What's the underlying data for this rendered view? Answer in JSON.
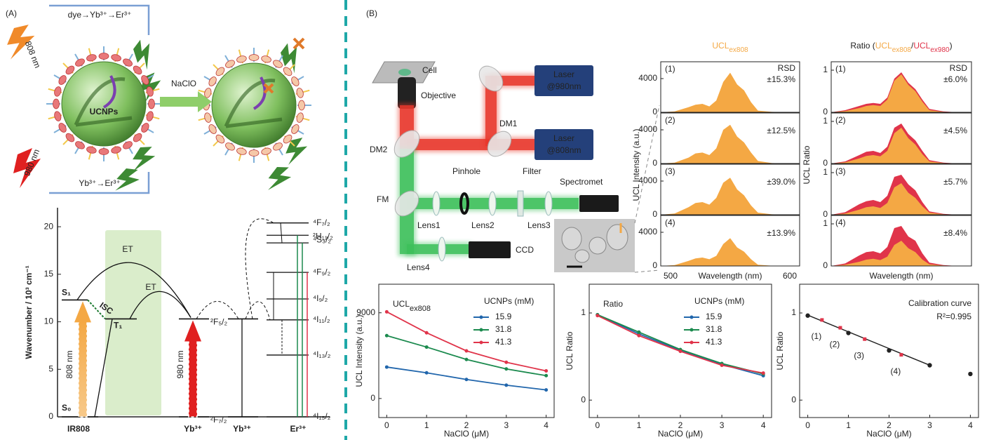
{
  "panel_labels": [
    "(A)",
    "(B)"
  ],
  "scheme": {
    "top_label": "dye→Yb³⁺→Er³⁺",
    "bottom_label": "Yb³⁺→Er³⁺",
    "laser_808": "808 nm",
    "laser_980": "980 nm",
    "core": "UCNPs",
    "reagent": "NaClO"
  },
  "energy_diagram": {
    "y_label": "Wavenumber / 10³ cm⁻¹",
    "ylim": [
      0,
      22
    ],
    "yticks": [
      0,
      5,
      10,
      15,
      20
    ],
    "species": [
      "IR808",
      "Yb³⁺",
      "Yb³⁺",
      "Er³⁺"
    ],
    "dye_levels": [
      {
        "label": "S₀",
        "value": 0
      },
      {
        "label": "S₁",
        "value": 12.3
      },
      {
        "label": "T₁",
        "value": 10.3
      }
    ],
    "yb_levels": [
      {
        "label": "²F₇/₂",
        "value": 0
      },
      {
        "label": "²F₅/₂",
        "value": 10.3
      }
    ],
    "er_levels": [
      {
        "label": "⁴I₁₅/₂",
        "value": 0
      },
      {
        "label": "⁴I₁₃/₂",
        "value": 6.5
      },
      {
        "label": "⁴I₁₁/₂",
        "value": 10.2
      },
      {
        "label": "⁴I₉/₂",
        "value": 12.4
      },
      {
        "label": "⁴F₉/₂",
        "value": 15.2
      },
      {
        "label": "⁴S₃/₂",
        "value": 18.3
      },
      {
        "label": "²H₁₁/₂",
        "value": 19.1
      },
      {
        "label": "⁴F₇/₂",
        "value": 20.4
      }
    ],
    "transitions": {
      "excite_808": "808 nm",
      "excite_980": "980 nm",
      "isc": "ISC",
      "et_dye": "ET",
      "et_triplet": "ET"
    }
  },
  "setup": {
    "cell": "Cell",
    "objective": "Objective",
    "laser_980": [
      "Laser",
      "@980nm"
    ],
    "laser_808": [
      "Laser",
      "@808nm"
    ],
    "dm1": "DM1",
    "dm2": "DM2",
    "fm": "FM",
    "pinhole": "Pinhole",
    "filter": "Filter",
    "spectrometer": "Spectromet",
    "lens1": "Lens1",
    "lens2": "Lens2",
    "lens3": "Lens3",
    "lens4": "Lens4",
    "ccd": "CCD"
  },
  "spectra_columns": [
    {
      "title": [
        {
          "text": "UCL",
          "color": "#f4a844"
        },
        {
          "text": "ex808",
          "color": "#f4a844",
          "sub": true
        }
      ],
      "y_label": "UCL Intensity (a.u.)",
      "x_label": "Wavelength (nm)",
      "header": "RSD"
    },
    {
      "title": [
        {
          "text": "Ratio (",
          "color": "#222"
        },
        {
          "text": "UCL",
          "color": "#f4a844"
        },
        {
          "text": "ex808",
          "color": "#f4a844",
          "sub": true
        },
        {
          "text": "/",
          "color": "#222"
        },
        {
          "text": "UCL",
          "color": "#e0344a"
        },
        {
          "text": "ex980",
          "color": "#e0344a",
          "sub": true
        },
        {
          "text": ")",
          "color": "#222"
        }
      ],
      "y_label": "UCL Ratio",
      "x_label": "Wavelength (nm)",
      "header": "RSD"
    }
  ],
  "chart_data": [
    {
      "type": "area",
      "label": "(1)",
      "annotation": "±15.3%",
      "x": [
        500,
        510,
        520,
        525,
        530,
        535,
        540,
        545,
        550,
        555,
        560,
        565,
        570,
        580,
        590,
        600
      ],
      "xlim": [
        500,
        600
      ],
      "ylim": [
        0,
        6000
      ],
      "yticks": [
        0,
        4000
      ],
      "series": [
        {
          "color": "#f4a844",
          "values": [
            0,
            100,
            600,
            900,
            1000,
            700,
            1400,
            3600,
            4700,
            3300,
            2600,
            1200,
            200,
            50,
            0,
            0
          ]
        }
      ]
    },
    {
      "type": "area",
      "label": "(2)",
      "annotation": "±12.5%",
      "x": [
        500,
        510,
        520,
        525,
        530,
        535,
        540,
        545,
        550,
        555,
        560,
        565,
        570,
        580,
        590,
        600
      ],
      "xlim": [
        500,
        600
      ],
      "ylim": [
        0,
        6000
      ],
      "yticks": [
        0,
        4000
      ],
      "series": [
        {
          "color": "#f4a844",
          "values": [
            0,
            100,
            700,
            1200,
            1300,
            1000,
            1800,
            4000,
            4600,
            3200,
            2500,
            1300,
            300,
            50,
            0,
            0
          ]
        }
      ]
    },
    {
      "type": "area",
      "label": "(3)",
      "annotation": "±39.0%",
      "x": [
        500,
        510,
        520,
        525,
        530,
        535,
        540,
        545,
        550,
        555,
        560,
        565,
        570,
        580,
        590,
        600
      ],
      "xlim": [
        500,
        600
      ],
      "ylim": [
        0,
        6000
      ],
      "yticks": [
        0,
        4000
      ],
      "series": [
        {
          "color": "#f4a844",
          "values": [
            0,
            150,
            900,
            1400,
            1500,
            1200,
            2000,
            3800,
            4400,
            3000,
            2300,
            1100,
            250,
            50,
            0,
            0
          ]
        }
      ]
    },
    {
      "type": "area",
      "label": "(4)",
      "annotation": "±13.9%",
      "x": [
        500,
        510,
        520,
        525,
        530,
        535,
        540,
        545,
        550,
        555,
        560,
        565,
        570,
        580,
        590,
        600
      ],
      "xlim": [
        500,
        600
      ],
      "ylim": [
        0,
        6000
      ],
      "yticks": [
        0,
        4000
      ],
      "xticks": [
        500,
        600
      ],
      "series": [
        {
          "color": "#f4a844",
          "values": [
            0,
            100,
            600,
            900,
            1000,
            800,
            1200,
            2600,
            3300,
            2200,
            1700,
            800,
            150,
            30,
            0,
            0
          ]
        }
      ]
    },
    {
      "type": "area",
      "label": "(1)",
      "annotation": "±6.0%",
      "x": [
        500,
        510,
        520,
        525,
        530,
        535,
        540,
        545,
        550,
        555,
        560,
        565,
        570,
        580,
        590,
        600
      ],
      "xlim": [
        500,
        600
      ],
      "ylim": [
        0,
        1.2
      ],
      "yticks": [
        0,
        1
      ],
      "series": [
        {
          "color": "#e0344a",
          "values": [
            0,
            0.05,
            0.15,
            0.2,
            0.22,
            0.2,
            0.35,
            0.8,
            0.95,
            0.7,
            0.55,
            0.3,
            0.08,
            0.02,
            0,
            0
          ]
        },
        {
          "color": "#f4a844",
          "values": [
            0,
            0.03,
            0.1,
            0.15,
            0.17,
            0.15,
            0.3,
            0.75,
            0.9,
            0.65,
            0.5,
            0.25,
            0.05,
            0.01,
            0,
            0
          ]
        }
      ]
    },
    {
      "type": "area",
      "label": "(2)",
      "annotation": "±4.5%",
      "x": [
        500,
        510,
        520,
        525,
        530,
        535,
        540,
        545,
        550,
        555,
        560,
        565,
        570,
        580,
        590,
        600
      ],
      "xlim": [
        500,
        600
      ],
      "ylim": [
        0,
        1.2
      ],
      "yticks": [
        0,
        1
      ],
      "series": [
        {
          "color": "#e0344a",
          "values": [
            0,
            0.05,
            0.2,
            0.28,
            0.3,
            0.25,
            0.4,
            0.85,
            0.95,
            0.7,
            0.55,
            0.3,
            0.08,
            0.02,
            0,
            0
          ]
        },
        {
          "color": "#f4a844",
          "values": [
            0,
            0.03,
            0.12,
            0.18,
            0.2,
            0.17,
            0.3,
            0.72,
            0.85,
            0.6,
            0.45,
            0.22,
            0.05,
            0.01,
            0,
            0
          ]
        }
      ]
    },
    {
      "type": "area",
      "label": "(3)",
      "annotation": "±5.7%",
      "x": [
        500,
        510,
        520,
        525,
        530,
        535,
        540,
        545,
        550,
        555,
        560,
        565,
        570,
        580,
        590,
        600
      ],
      "xlim": [
        500,
        600
      ],
      "ylim": [
        0,
        1.2
      ],
      "yticks": [
        0,
        1
      ],
      "series": [
        {
          "color": "#e0344a",
          "values": [
            0,
            0.06,
            0.25,
            0.32,
            0.35,
            0.3,
            0.45,
            0.9,
            0.95,
            0.72,
            0.58,
            0.3,
            0.08,
            0.02,
            0,
            0
          ]
        },
        {
          "color": "#f4a844",
          "values": [
            0,
            0.03,
            0.12,
            0.18,
            0.2,
            0.16,
            0.28,
            0.65,
            0.75,
            0.52,
            0.4,
            0.2,
            0.05,
            0.01,
            0,
            0
          ]
        }
      ]
    },
    {
      "type": "area",
      "label": "(4)",
      "annotation": "±8.4%",
      "x": [
        500,
        510,
        520,
        525,
        530,
        535,
        540,
        545,
        550,
        555,
        560,
        565,
        570,
        580,
        590,
        600
      ],
      "xlim": [
        500,
        600
      ],
      "ylim": [
        0,
        1.2
      ],
      "yticks": [
        0,
        1
      ],
      "series": [
        {
          "color": "#e0344a",
          "values": [
            0,
            0.06,
            0.25,
            0.33,
            0.35,
            0.3,
            0.45,
            0.9,
            0.95,
            0.7,
            0.6,
            0.3,
            0.08,
            0.02,
            0,
            0
          ]
        },
        {
          "color": "#f4a844",
          "values": [
            0,
            0.03,
            0.1,
            0.15,
            0.17,
            0.14,
            0.22,
            0.5,
            0.6,
            0.42,
            0.33,
            0.15,
            0.04,
            0.01,
            0,
            0
          ]
        }
      ]
    },
    {
      "type": "line",
      "title": {
        "text": "UCL",
        "sub": "ex808",
        "color": "#f4a844"
      },
      "x_label": "NaClO  (μM)",
      "y_label": "UCL Intensity (a.u.)",
      "legend_title": "UCNPs (mM)",
      "x": [
        0,
        1,
        2,
        3,
        4
      ],
      "xlim": [
        -0.2,
        4.2
      ],
      "xticks": [
        0,
        1,
        2,
        3,
        4
      ],
      "ylim": [
        -2000,
        12000
      ],
      "yticks": [
        0,
        9000
      ],
      "series": [
        {
          "name": "15.9",
          "color": "#2166ac",
          "values": [
            3300,
            2700,
            2000,
            1400,
            900
          ],
          "errors": [
            150,
            150,
            100,
            150,
            100
          ]
        },
        {
          "name": "31.8",
          "color": "#1b8a4e",
          "values": [
            6600,
            5400,
            4100,
            3100,
            2400
          ],
          "errors": [
            150,
            300,
            150,
            200,
            150
          ]
        },
        {
          "name": "41.3",
          "color": "#e0344a",
          "values": [
            9100,
            6900,
            5000,
            3800,
            2900
          ],
          "errors": [
            100,
            200,
            150,
            150,
            150
          ]
        }
      ]
    },
    {
      "type": "line",
      "title": {
        "text": "Ratio",
        "color": "#222"
      },
      "x_label": "NaClO  (μM)",
      "y_label": "UCL Ratio",
      "legend_title": "UCNPs (mM)",
      "x": [
        0,
        1,
        2,
        3,
        4
      ],
      "xlim": [
        -0.2,
        4.2
      ],
      "xticks": [
        0,
        1,
        2,
        3,
        4
      ],
      "ylim": [
        -0.2,
        1.33
      ],
      "yticks": [
        0,
        1
      ],
      "series": [
        {
          "name": "15.9",
          "color": "#2166ac",
          "values": [
            0.98,
            0.76,
            0.57,
            0.41,
            0.28
          ],
          "errors": [
            0.02,
            0.06,
            0.03,
            0.04,
            0.03
          ]
        },
        {
          "name": "31.8",
          "color": "#1b8a4e",
          "values": [
            0.98,
            0.78,
            0.58,
            0.42,
            0.3
          ],
          "errors": [
            0.02,
            0.05,
            0.03,
            0.03,
            0.03
          ]
        },
        {
          "name": "41.3",
          "color": "#e0344a",
          "values": [
            0.97,
            0.74,
            0.56,
            0.4,
            0.31
          ],
          "errors": [
            0.02,
            0.05,
            0.03,
            0.04,
            0.03
          ]
        }
      ]
    },
    {
      "type": "scatter",
      "annotation": [
        "Calibration curve",
        "R²=0.995"
      ],
      "x_label": "NaClO  (μM)",
      "y_label": "UCL Ratio",
      "xlim": [
        -0.2,
        4.2
      ],
      "xticks": [
        0,
        1,
        2,
        3,
        4
      ],
      "ylim": [
        -0.2,
        1.33
      ],
      "yticks": [
        0,
        1
      ],
      "series": [
        {
          "color": "#222",
          "x": [
            0,
            1,
            2,
            3,
            4
          ],
          "values": [
            0.97,
            0.77,
            0.57,
            0.4,
            0.3
          ],
          "errors": [
            0.01,
            0.04,
            0.02,
            0.03,
            0.02
          ]
        },
        {
          "color": "#e0344a",
          "x": [
            0.35,
            0.8,
            1.4,
            2.3
          ],
          "values": [
            0.92,
            0.83,
            0.7,
            0.52
          ],
          "errors": [
            0.04,
            0.03,
            0.03,
            0.04
          ],
          "labels": [
            "(1)",
            "(2)",
            "(3)",
            "(4)"
          ]
        }
      ],
      "fit": {
        "x": [
          0,
          3
        ],
        "values": [
          0.975,
          0.4
        ]
      }
    }
  ]
}
